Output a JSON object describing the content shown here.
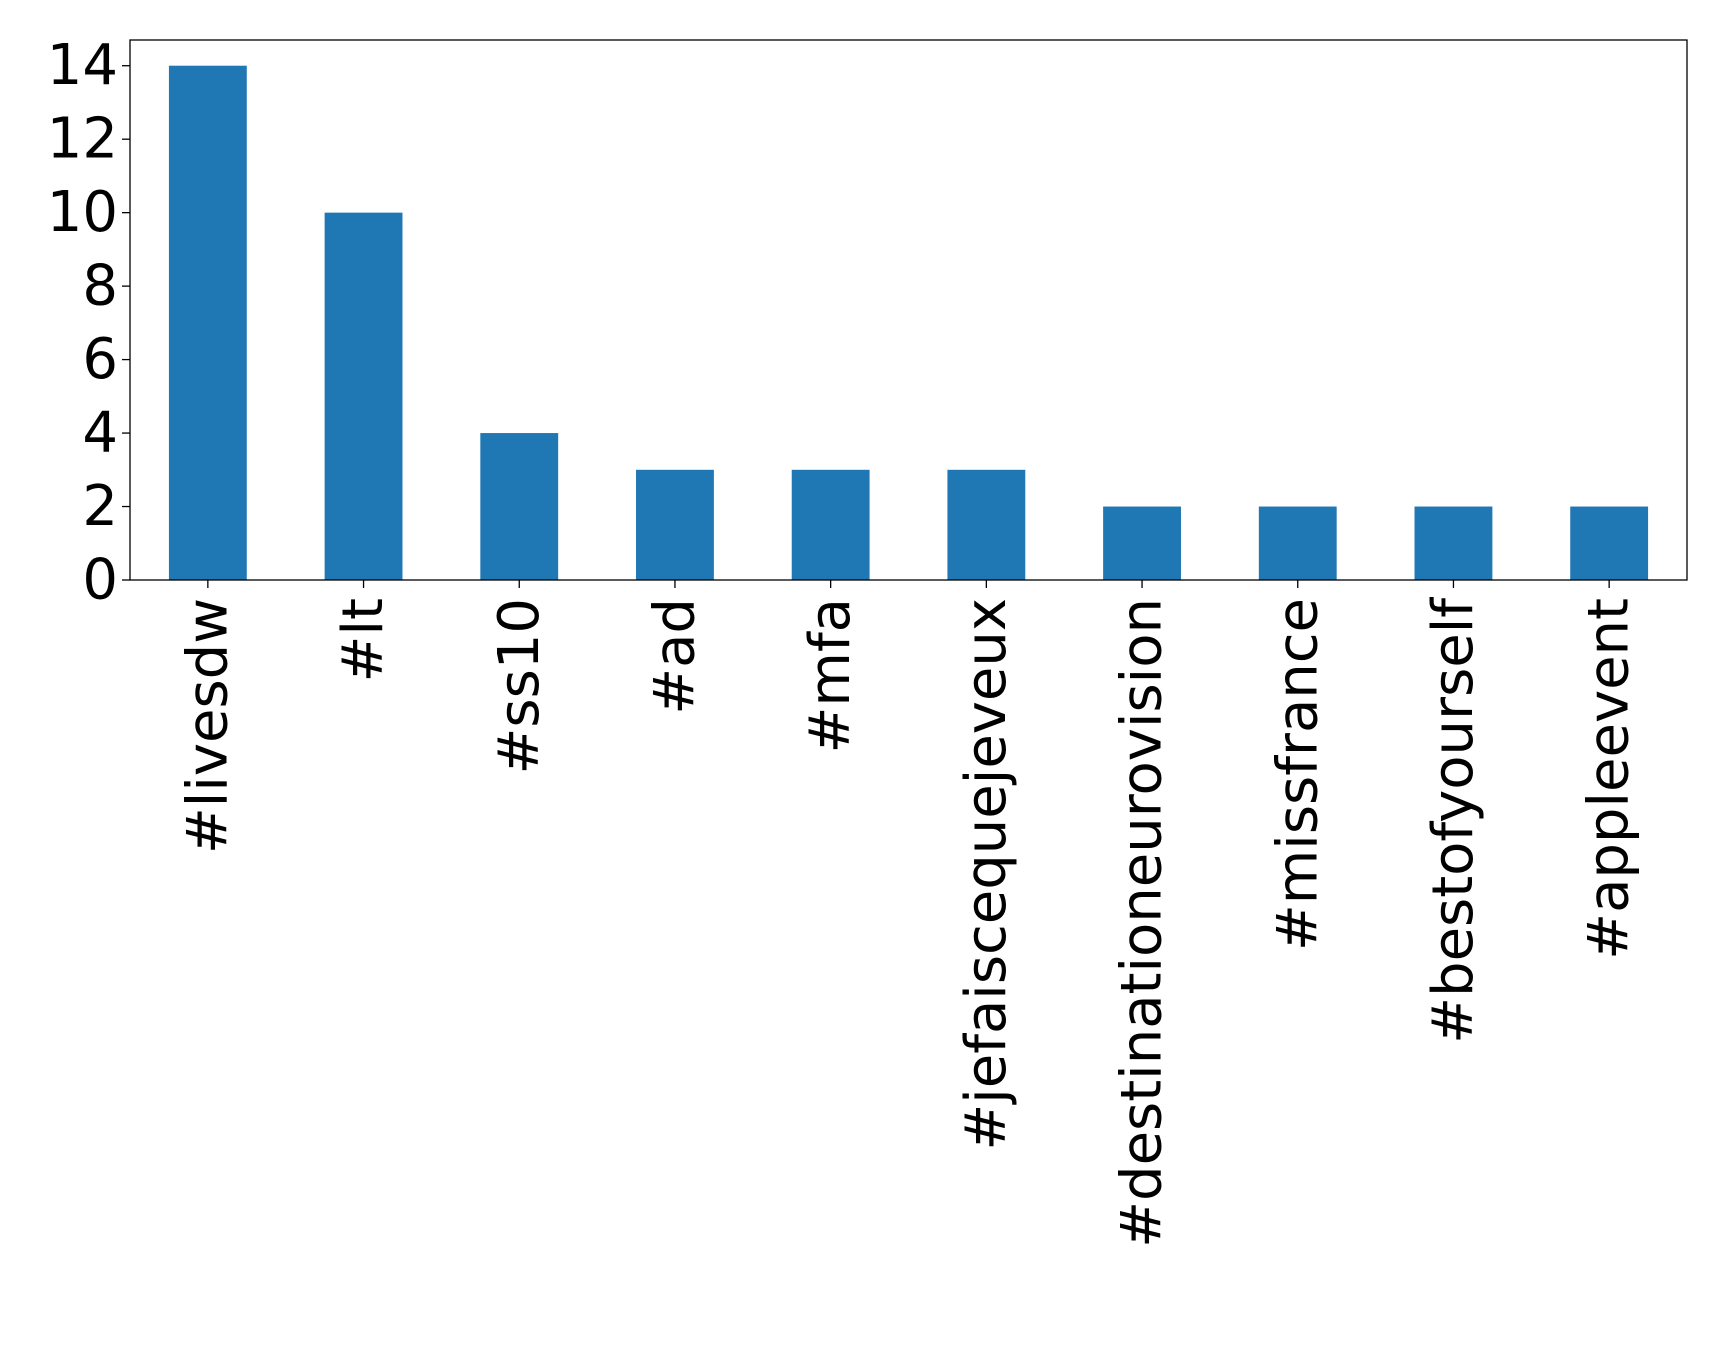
{
  "chart_data": {
    "type": "bar",
    "title": "",
    "xlabel": "",
    "ylabel": "",
    "categories": [
      "#livesdw",
      "#lt",
      "#ss10",
      "#ad",
      "#mfa",
      "#jefaiscequejeveux",
      "#destinationeurovision",
      "#missfrance",
      "#bestofyourself",
      "#appleevent"
    ],
    "values": [
      14,
      10,
      4,
      3,
      3,
      3,
      2,
      2,
      2,
      2
    ],
    "ylim": [
      0,
      14.7
    ],
    "yticks": [
      0,
      2,
      4,
      6,
      8,
      10,
      12,
      14
    ],
    "grid": false,
    "legend": "none",
    "bar_color": "#1f77b4"
  }
}
